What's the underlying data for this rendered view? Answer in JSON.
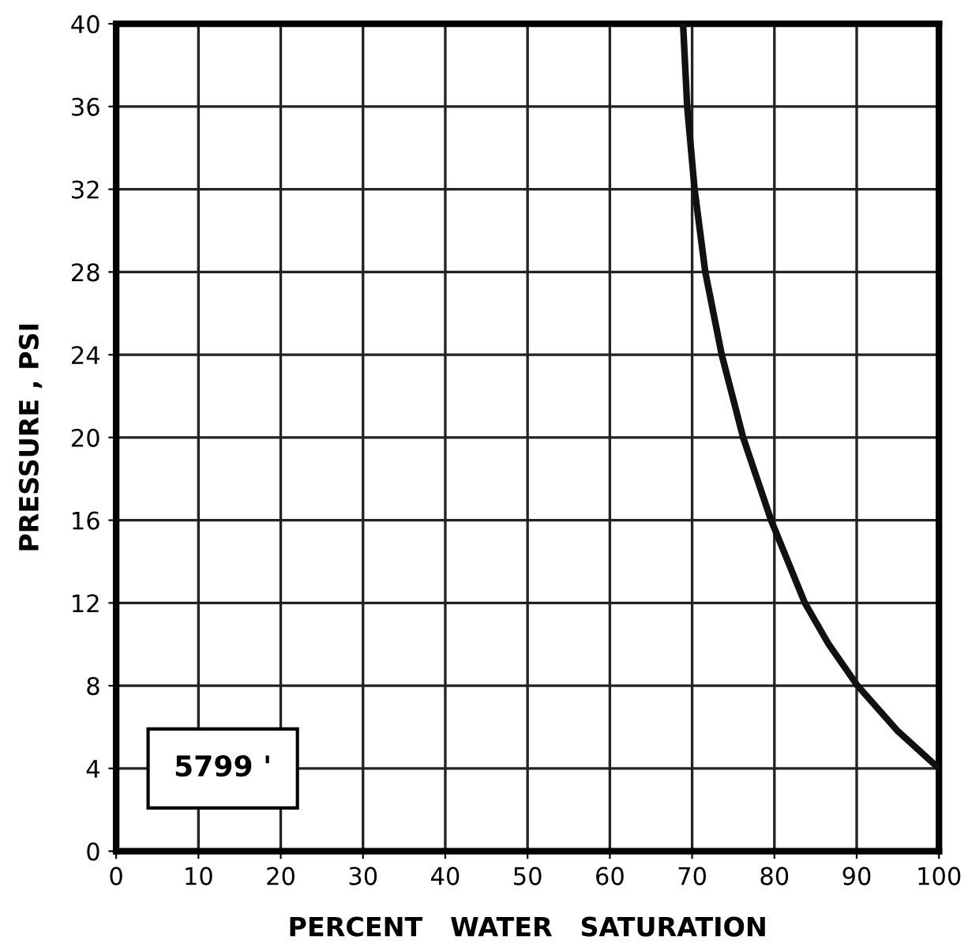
{
  "chart_data": {
    "type": "line",
    "xlabel": "PERCENT   WATER   SATURATION",
    "ylabel": "PRESSURE , PSI",
    "x": [
      68.9,
      69.4,
      70.3,
      71.6,
      73.6,
      76.2,
      79.6,
      83.7,
      86.6,
      90.1,
      95.0,
      100
    ],
    "series": [
      {
        "color": "#111111",
        "values": [
          40,
          36,
          32,
          28,
          24,
          20,
          16,
          12,
          10,
          8,
          5.8,
          4
        ]
      }
    ],
    "xlim": [
      0,
      100
    ],
    "ylim": [
      0,
      40
    ],
    "xticks": [
      0,
      10,
      20,
      30,
      40,
      50,
      60,
      70,
      80,
      90,
      100
    ],
    "yticks": [
      0,
      4,
      8,
      12,
      16,
      20,
      24,
      28,
      32,
      36,
      40
    ],
    "grid": true,
    "marker": "none",
    "line_style": "solid",
    "annotations": [
      "5799 '"
    ]
  }
}
